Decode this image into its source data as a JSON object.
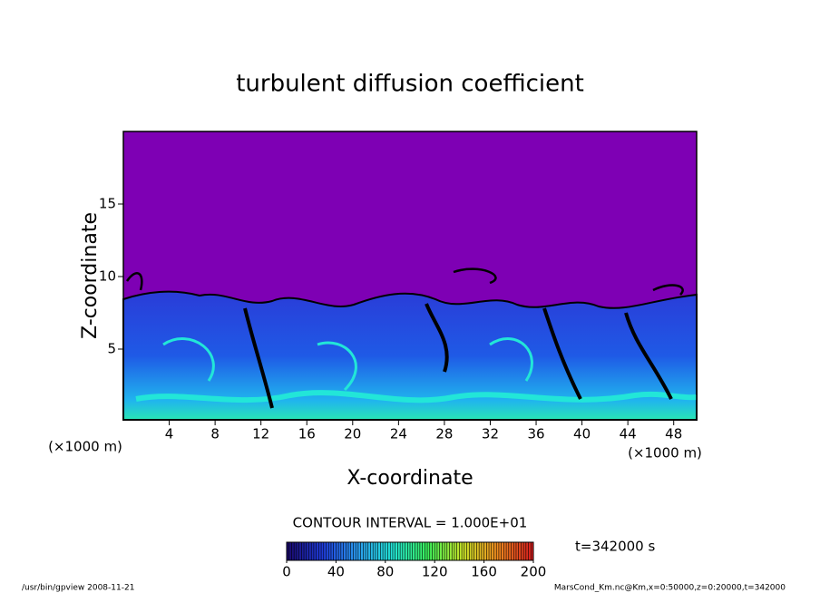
{
  "chart_data": {
    "type": "contour",
    "title": "turbulent diffusion coefficient",
    "xlabel": "X-coordinate",
    "ylabel": "Z-coordinate",
    "x_unit_label": "(×1000 m)",
    "y_unit_label": "(×1000 m)",
    "xlim": [
      0,
      50
    ],
    "ylim": [
      0,
      20
    ],
    "xticks": [
      4,
      8,
      12,
      16,
      20,
      24,
      28,
      32,
      36,
      40,
      44,
      48
    ],
    "yticks": [
      5,
      10,
      15
    ],
    "contour_interval": "CONTOUR INTERVAL = 1.000E+01",
    "time_label": "t=342000 s",
    "colorbar": {
      "lim": [
        0,
        200
      ],
      "ticks": [
        0,
        40,
        80,
        120,
        160,
        200
      ],
      "colors": [
        "#1a0a6e",
        "#1f3cdc",
        "#2a9cf0",
        "#22e6d8",
        "#3af05a",
        "#c8e628",
        "#f08c1e",
        "#d81e1e"
      ]
    },
    "footer_left": "/usr/bin/gpview   2008-11-21",
    "footer_right": "MarsCond_Km.nc@Km,x=0:50000,z=0:20000,t=342000"
  }
}
